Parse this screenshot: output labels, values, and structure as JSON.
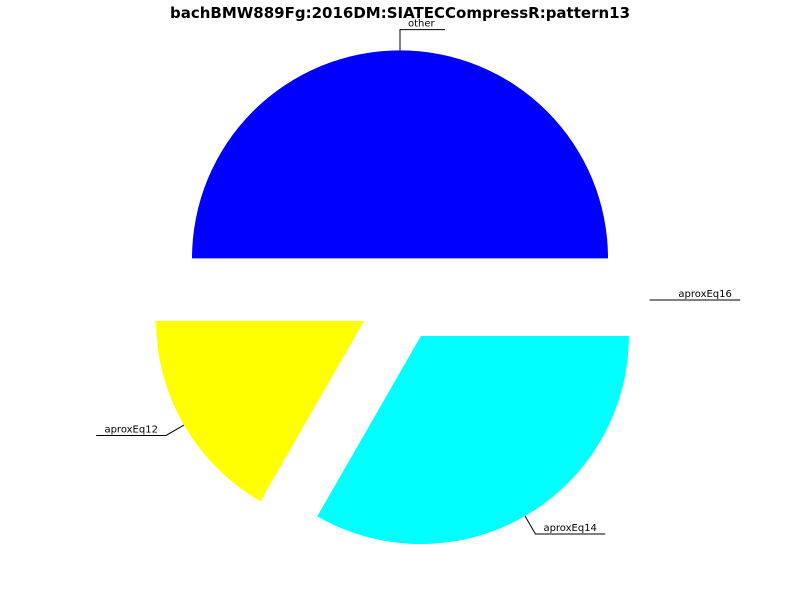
{
  "chart_data": {
    "type": "pie",
    "title": "bachBMW889Fg:2016DM:SIATECCompressR:pattern13",
    "slices": [
      {
        "label": "other",
        "value": 50,
        "color": "#0000ff"
      },
      {
        "label": "aproxEq12",
        "value": 16.7,
        "color": "#ffff00"
      },
      {
        "label": "aproxEq14",
        "value": 33.3,
        "color": "#00ffff"
      },
      {
        "label": "aproxEq16",
        "value": 0,
        "color": "#ff00ff"
      }
    ],
    "legend": "none"
  }
}
